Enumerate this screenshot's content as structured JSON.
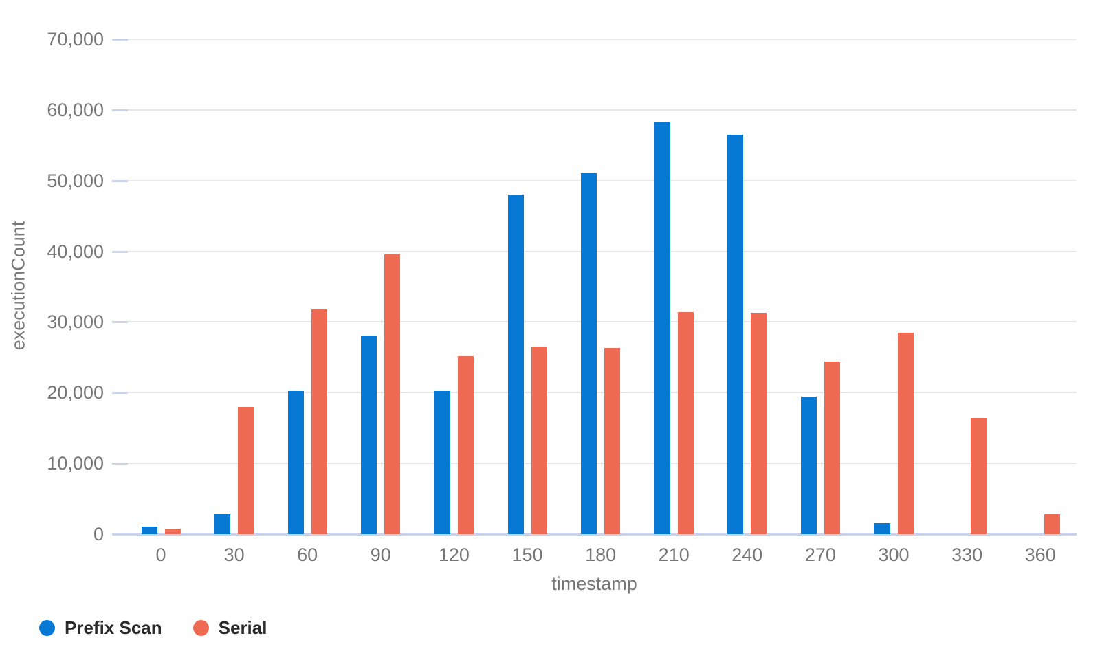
{
  "chart_data": {
    "type": "bar",
    "title": "",
    "xlabel": "timestamp",
    "ylabel": "executionCount",
    "categories": [
      "0",
      "30",
      "60",
      "90",
      "120",
      "150",
      "180",
      "210",
      "240",
      "270",
      "300",
      "330",
      "360"
    ],
    "series": [
      {
        "name": "Prefix Scan",
        "color": "#0778D4",
        "values": [
          1100,
          2800,
          20300,
          28100,
          20300,
          48000,
          51000,
          58300,
          56500,
          19400,
          1600,
          0,
          0
        ]
      },
      {
        "name": "Serial",
        "color": "#EE6A52",
        "values": [
          800,
          18000,
          31800,
          39600,
          25200,
          26500,
          26300,
          31400,
          31300,
          24400,
          28500,
          16400,
          2800
        ]
      }
    ],
    "ylim": [
      0,
      70000
    ],
    "y_ticks": [
      0,
      10000,
      20000,
      30000,
      40000,
      50000,
      60000,
      70000
    ],
    "y_tick_labels": [
      "0",
      "10,000",
      "20,000",
      "30,000",
      "40,000",
      "50,000",
      "60,000",
      "70,000"
    ],
    "grid": true,
    "legend_position": "bottom-left"
  },
  "style_colors": {
    "bar_blue": "#0778D4",
    "bar_red": "#EE6A52",
    "gridline": "#E6E6E6",
    "axis_line": "#C9D3EB",
    "tick_mark": "#C9D3EB",
    "tick_label": "#777777",
    "axis_title": "#777777",
    "legend_text": "#2B2B2B",
    "background": "#FFFFFF"
  }
}
